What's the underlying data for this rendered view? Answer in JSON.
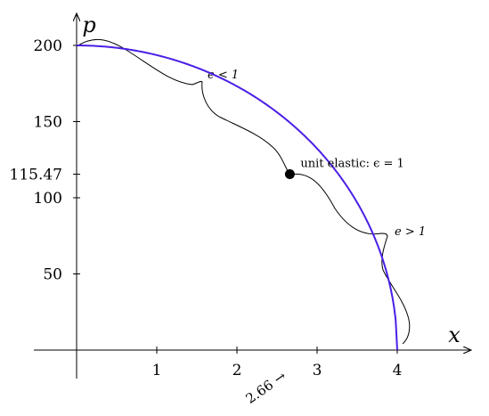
{
  "chart_data": {
    "type": "line",
    "title": "",
    "xlabel": "x",
    "ylabel": "p",
    "xlim": [
      -0.5,
      4.9
    ],
    "ylim": [
      -18,
      218
    ],
    "x_ticks": [
      1,
      2,
      3,
      4
    ],
    "y_ticks": [
      50,
      100,
      150,
      200
    ],
    "y_ticks_extra": [
      115.47
    ],
    "series": [
      {
        "name": "",
        "color": "#4b1ee6",
        "x": [
          0,
          0.25,
          0.5,
          0.75,
          1.0,
          1.25,
          1.5,
          1.75,
          2.0,
          2.25,
          2.5,
          2.66,
          2.8,
          3.0,
          3.2,
          3.4,
          3.6,
          3.75,
          3.9,
          4.0
        ],
        "y": [
          200.0,
          196.9,
          193.6,
          190.3,
          186.7,
          183.0,
          179.0,
          174.8,
          170.2,
          165.3,
          160.0,
          115.47,
          107.7,
          99.3,
          90.0,
          79.6,
          67.6,
          57.0,
          43.5,
          10.0
        ]
      }
    ],
    "marked_point": {
      "x": 2.66,
      "y": 115.47,
      "label": "unit elastic: ϵ = 1"
    },
    "x_annotation": {
      "value": 2.66,
      "label": "2.66 →"
    },
    "ylabel_extra_tick": "115.47",
    "brace_labels": {
      "inelastic": "e < 1",
      "elastic": "e > 1"
    },
    "grid": false,
    "legend": "none"
  }
}
